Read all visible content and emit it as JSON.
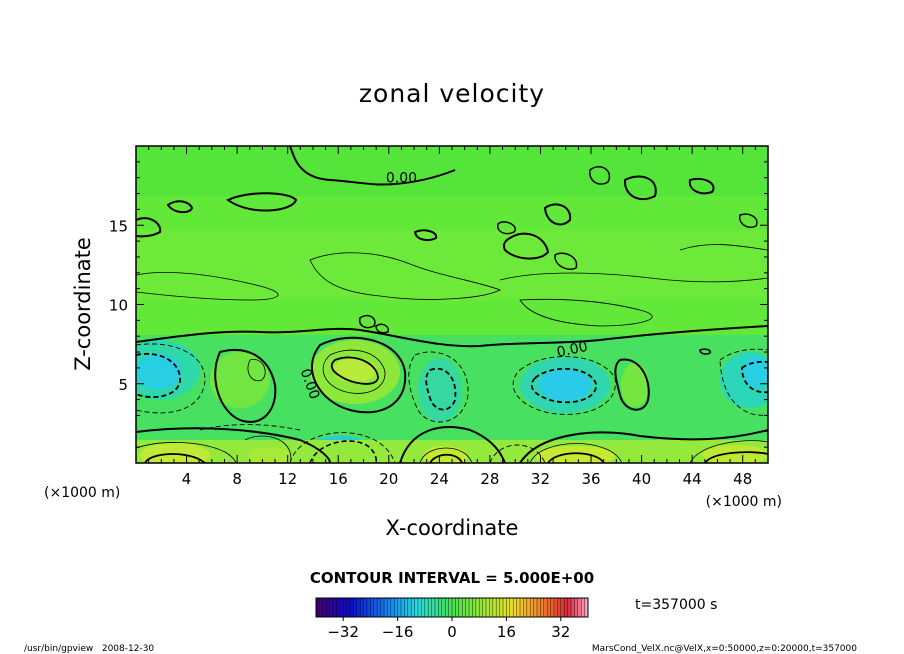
{
  "chart_data": {
    "type": "heatmap",
    "title": "zonal velocity",
    "xlabel": "X-coordinate",
    "ylabel": "Z-coordinate",
    "x_unit_left": "(×1000 m)",
    "x_unit_right": "(×1000 m)",
    "xlim": [
      0,
      50
    ],
    "ylim": [
      0,
      20
    ],
    "x_ticks": [
      4,
      8,
      12,
      16,
      20,
      24,
      28,
      32,
      36,
      40,
      44,
      48
    ],
    "y_ticks": [
      5,
      10,
      15
    ],
    "contour_interval_text": "CONTOUR INTERVAL = 5.000E+00",
    "contour_labels": [
      {
        "text": "0.00",
        "x": 21,
        "z": 18
      },
      {
        "text": "0.00",
        "x": 34.5,
        "z": 7.2
      },
      {
        "text": "0.00",
        "x": 13.8,
        "z": 5
      }
    ],
    "time_label": "t=357000 s",
    "colorbar": {
      "min": -40,
      "max": 40,
      "ticks": [
        -32,
        -16,
        0,
        16,
        32
      ]
    }
  },
  "footer": {
    "left": "/usr/bin/gpview   2008-12-30",
    "right": "MarsCond_VelX.nc@VelX,x=0:50000,z=0:20000,t=357000"
  }
}
